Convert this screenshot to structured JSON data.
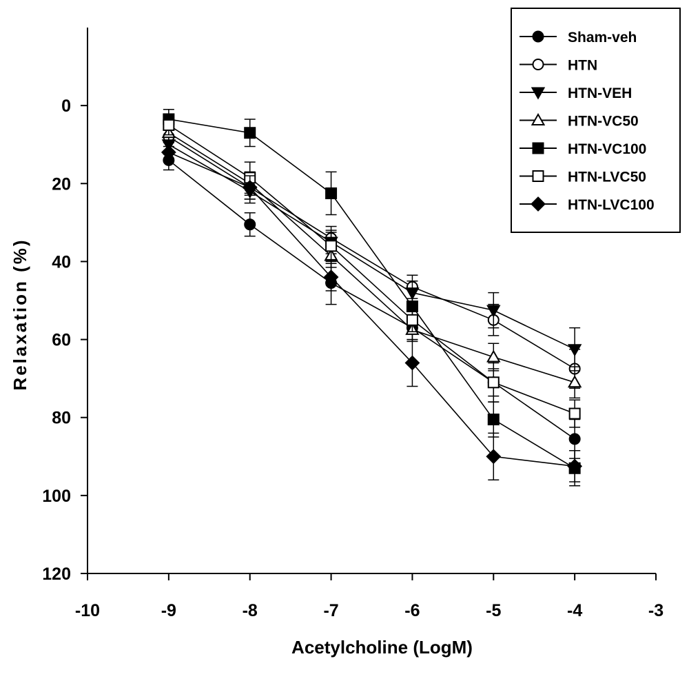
{
  "chart_data": {
    "type": "line",
    "title": "",
    "xlabel": "Acetylcholine (LogM)",
    "ylabel": "Relaxation (%)",
    "xlim": [
      -10,
      -3
    ],
    "ylim": [
      120,
      -20
    ],
    "y_inverted": true,
    "xticks": [
      -10,
      -9,
      -8,
      -7,
      -6,
      -5,
      -4,
      -3
    ],
    "xtick_labels": [
      "-10",
      "-9",
      "-8",
      "-7",
      "-6",
      "-5",
      "-4",
      "-3"
    ],
    "yticks": [
      0,
      20,
      40,
      60,
      80,
      100,
      120
    ],
    "ytick_labels": [
      "0",
      "20",
      "40",
      "60",
      "80",
      "100",
      "120"
    ],
    "grid": false,
    "legend_position": "top-right",
    "x": [
      -9,
      -8,
      -7,
      -6,
      -5,
      -4
    ],
    "series": [
      {
        "name": "Sham-veh",
        "marker": "circle-filled",
        "values": [
          14,
          30.5,
          45.5,
          57,
          71,
          85.5
        ],
        "errors": [
          2.5,
          3,
          5.5,
          3,
          5,
          5
        ]
      },
      {
        "name": "HTN",
        "marker": "circle-open",
        "values": [
          8,
          21,
          34,
          46.5,
          55,
          67.5
        ],
        "errors": [
          2.5,
          3,
          3,
          3,
          4,
          5
        ]
      },
      {
        "name": "HTN-VEH",
        "marker": "triangle-down-filled",
        "values": [
          10,
          22,
          35,
          48,
          52.5,
          62.5
        ],
        "errors": [
          2.5,
          3,
          3,
          3,
          4.5,
          5.5
        ]
      },
      {
        "name": "HTN-VC50",
        "marker": "triangle-up-open",
        "values": [
          7,
          20,
          38.5,
          57.5,
          64.5,
          71
        ],
        "errors": [
          2.5,
          3,
          3,
          3,
          3.5,
          4
        ]
      },
      {
        "name": "HTN-VC100",
        "marker": "square-filled",
        "values": [
          3.5,
          7,
          22.5,
          51.5,
          80.5,
          93
        ],
        "errors": [
          2.5,
          3.5,
          5.5,
          4.5,
          4.5,
          4.5
        ]
      },
      {
        "name": "HTN-LVC50",
        "marker": "square-open",
        "values": [
          5,
          18.5,
          36,
          55,
          71,
          79
        ],
        "errors": [
          2.5,
          4,
          3.5,
          3,
          3.5,
          3.5
        ]
      },
      {
        "name": "HTN-LVC100",
        "marker": "diamond-filled",
        "values": [
          12,
          21,
          44,
          66,
          90,
          92.5
        ],
        "errors": [
          2.5,
          3,
          3.5,
          6,
          6,
          4
        ]
      }
    ]
  }
}
